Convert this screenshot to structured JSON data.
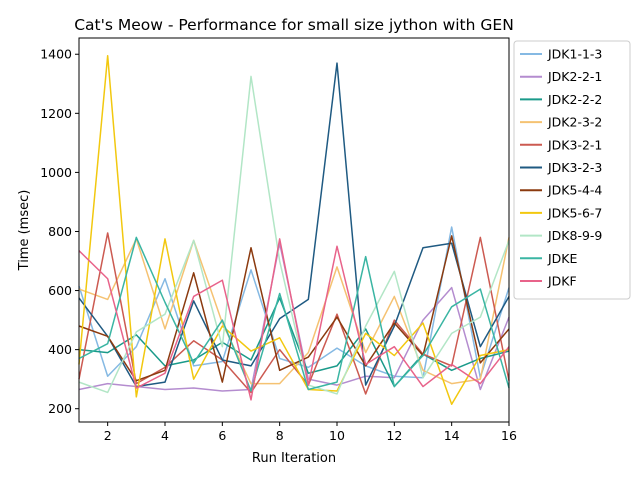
{
  "chart_data": {
    "type": "line",
    "title": "Cat's Meow - Performance for small size jython with GEN",
    "xlabel": "Run Iteration",
    "ylabel": "Time (msec)",
    "xlim": [
      1,
      16
    ],
    "ylim": [
      155,
      1455
    ],
    "xticks": [
      2,
      4,
      6,
      8,
      10,
      12,
      14,
      16
    ],
    "yticks": [
      200,
      400,
      600,
      800,
      1000,
      1200,
      1400
    ],
    "legend_position": "outside-right-top",
    "x": [
      1,
      2,
      3,
      4,
      5,
      6,
      7,
      8,
      9,
      10,
      11,
      12,
      13,
      14,
      15,
      16
    ],
    "series": [
      {
        "name": "JDK1-1-3",
        "color": "#85b9e3",
        "values": [
          615,
          310,
          410,
          640,
          345,
          360,
          670,
          370,
          340,
          405,
          345,
          310,
          305,
          815,
          305,
          610
        ]
      },
      {
        "name": "JDK2-2-1",
        "color": "#b48ccf",
        "values": [
          265,
          285,
          275,
          265,
          270,
          260,
          265,
          760,
          300,
          280,
          310,
          305,
          500,
          610,
          265,
          510
        ]
      },
      {
        "name": "JDK2-2-2",
        "color": "#1a9a8a",
        "values": [
          400,
          390,
          450,
          345,
          365,
          425,
          365,
          575,
          320,
          345,
          470,
          275,
          385,
          330,
          370,
          395
        ]
      },
      {
        "name": "JDK2-3-2",
        "color": "#f5c272",
        "values": [
          605,
          570,
          775,
          470,
          770,
          490,
          285,
          285,
          390,
          680,
          390,
          580,
          330,
          285,
          300,
          780
        ]
      },
      {
        "name": "JDK3-2-1",
        "color": "#cc5a51",
        "values": [
          300,
          795,
          285,
          340,
          430,
          365,
          255,
          400,
          280,
          520,
          250,
          500,
          385,
          345,
          780,
          295
        ]
      },
      {
        "name": "JDK3-2-3",
        "color": "#1f5a82",
        "values": [
          575,
          445,
          275,
          290,
          565,
          365,
          345,
          505,
          570,
          1370,
          280,
          480,
          745,
          760,
          410,
          580
        ]
      },
      {
        "name": "JDK5-4-4",
        "color": "#8b3a0f",
        "values": [
          480,
          445,
          295,
          330,
          660,
          290,
          745,
          330,
          375,
          510,
          345,
          490,
          380,
          785,
          355,
          470
        ]
      },
      {
        "name": "JDK5-6-7",
        "color": "#f2c80f",
        "values": [
          350,
          1395,
          240,
          775,
          300,
          480,
          395,
          440,
          265,
          260,
          455,
          380,
          490,
          215,
          380,
          400
        ]
      },
      {
        "name": "JDK8-9-9",
        "color": "#b2e6c6",
        "values": [
          290,
          255,
          460,
          520,
          770,
          410,
          1325,
          700,
          280,
          250,
          480,
          665,
          305,
          455,
          510,
          770
        ]
      },
      {
        "name": "JDKE",
        "color": "#3ab5a3",
        "values": [
          370,
          420,
          780,
          560,
          355,
          500,
          260,
          590,
          265,
          290,
          715,
          275,
          380,
          545,
          605,
          270
        ]
      },
      {
        "name": "JDKF",
        "color": "#e8638a",
        "values": [
          735,
          640,
          270,
          320,
          580,
          635,
          230,
          775,
          280,
          750,
          350,
          410,
          275,
          350,
          285,
          410
        ]
      }
    ]
  }
}
